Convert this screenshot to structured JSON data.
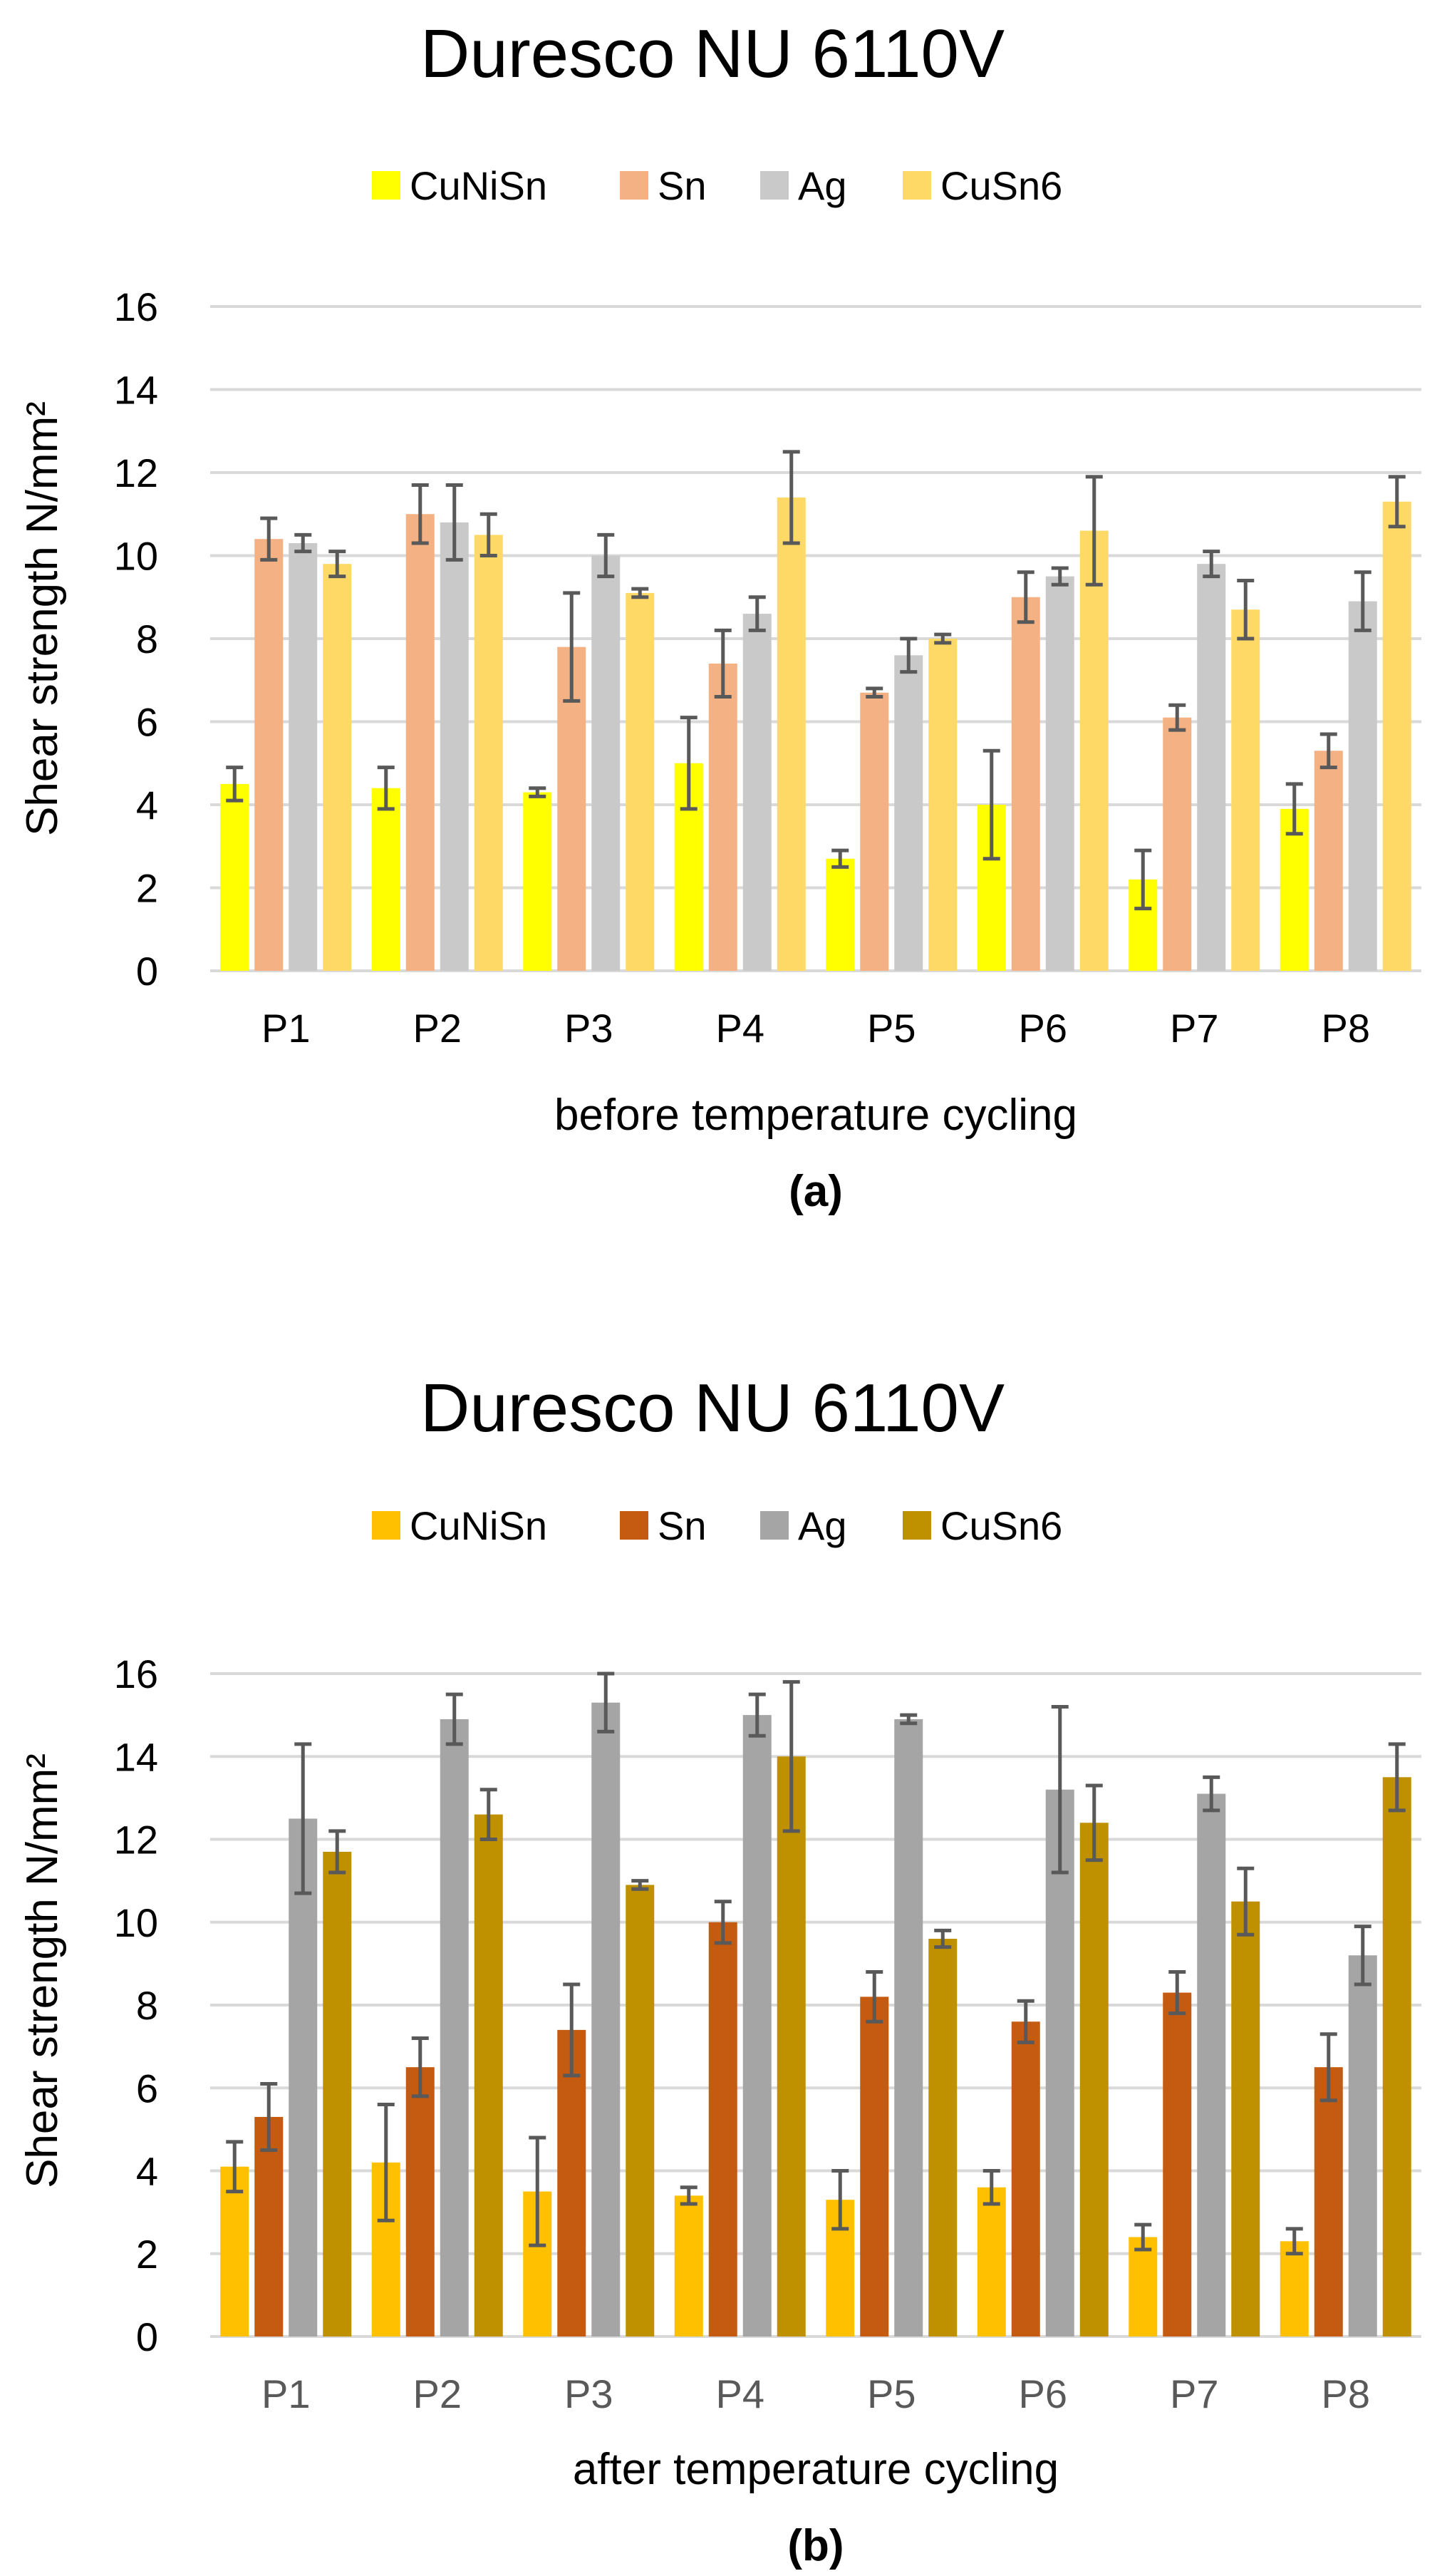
{
  "chart_data": [
    {
      "type": "bar",
      "title": "Duresco NU 6110V",
      "xlabel": "before temperature cycling",
      "ylabel": "Shear strength N/mm²",
      "panel_label": "(a)",
      "ylim": [
        0,
        16
      ],
      "yticks": [
        0,
        2,
        4,
        6,
        8,
        10,
        12,
        14,
        16
      ],
      "grid": true,
      "legend": "top",
      "categories": [
        "P1",
        "P2",
        "P3",
        "P4",
        "P5",
        "P6",
        "P7",
        "P8"
      ],
      "series": [
        {
          "name": "CuNiSn",
          "color": "#ffff00",
          "values": [
            4.5,
            4.4,
            4.3,
            5.0,
            2.7,
            4.0,
            2.2,
            3.9
          ],
          "errors": [
            0.4,
            0.5,
            0.1,
            1.1,
            0.2,
            1.3,
            0.7,
            0.6
          ]
        },
        {
          "name": "Sn",
          "color": "#f4b183",
          "values": [
            10.4,
            11.0,
            7.8,
            7.4,
            6.7,
            9.0,
            6.1,
            5.3
          ],
          "errors": [
            0.5,
            0.7,
            1.3,
            0.8,
            0.1,
            0.6,
            0.3,
            0.4
          ]
        },
        {
          "name": "Ag",
          "color": "#c9c9c9",
          "values": [
            10.3,
            10.8,
            10.0,
            8.6,
            7.6,
            9.5,
            9.8,
            8.9
          ],
          "errors": [
            0.2,
            0.9,
            0.5,
            0.4,
            0.4,
            0.2,
            0.3,
            0.7
          ]
        },
        {
          "name": "CuSn6",
          "color": "#ffd966",
          "values": [
            9.8,
            10.5,
            9.1,
            11.4,
            8.0,
            10.6,
            8.7,
            11.3
          ],
          "errors": [
            0.3,
            0.5,
            0.1,
            1.1,
            0.1,
            1.3,
            0.7,
            0.6
          ]
        }
      ]
    },
    {
      "type": "bar",
      "title": "Duresco NU 6110V",
      "xlabel": "after temperature cycling",
      "ylabel": "Shear strength N/mm²",
      "panel_label": "(b)",
      "ylim": [
        0,
        16
      ],
      "yticks": [
        0,
        2,
        4,
        6,
        8,
        10,
        12,
        14,
        16
      ],
      "grid": true,
      "legend": "top",
      "categories": [
        "P1",
        "P2",
        "P3",
        "P4",
        "P5",
        "P6",
        "P7",
        "P8"
      ],
      "series": [
        {
          "name": "CuNiSn",
          "color": "#ffc000",
          "values": [
            4.1,
            4.2,
            3.5,
            3.4,
            3.3,
            3.6,
            2.4,
            2.3
          ],
          "errors": [
            0.6,
            1.4,
            1.3,
            0.2,
            0.7,
            0.4,
            0.3,
            0.3
          ]
        },
        {
          "name": "Sn",
          "color": "#c55a11",
          "values": [
            5.3,
            6.5,
            7.4,
            10.0,
            8.2,
            7.6,
            8.3,
            6.5
          ],
          "errors": [
            0.8,
            0.7,
            1.1,
            0.5,
            0.6,
            0.5,
            0.5,
            0.8
          ]
        },
        {
          "name": "Ag",
          "color": "#a5a5a5",
          "values": [
            12.5,
            14.9,
            15.3,
            15.0,
            14.9,
            13.2,
            13.1,
            9.2
          ],
          "errors": [
            1.8,
            0.6,
            0.7,
            0.5,
            0.1,
            2.0,
            0.4,
            0.7
          ]
        },
        {
          "name": "CuSn6",
          "color": "#bf9000",
          "values": [
            11.7,
            12.6,
            10.9,
            14.0,
            9.6,
            12.4,
            10.5,
            13.5
          ],
          "errors": [
            0.5,
            0.6,
            0.1,
            1.8,
            0.2,
            0.9,
            0.8,
            0.8
          ]
        }
      ]
    }
  ]
}
